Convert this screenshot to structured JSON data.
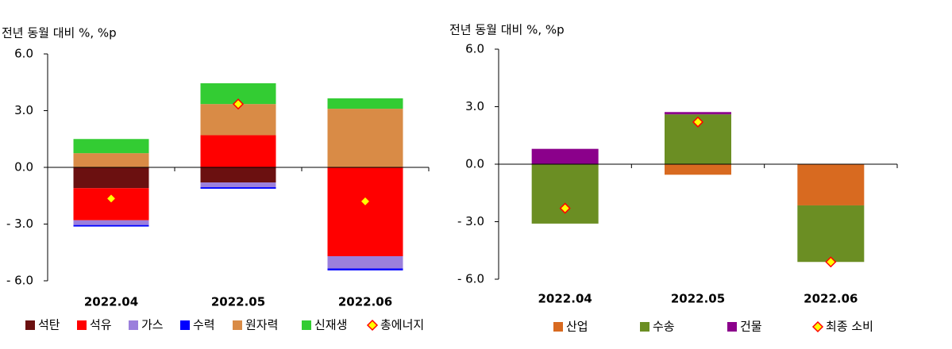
{
  "chart_data": [
    {
      "type": "bar",
      "stacked": true,
      "ylabel": "전년 동월 대비 %, %p",
      "categories": [
        "2022.04",
        "2022.05",
        "2022.06"
      ],
      "ylim": [
        -6,
        6
      ],
      "yticks": [
        {
          "value": 6,
          "label": "6.0"
        },
        {
          "value": 3,
          "label": "3.0"
        },
        {
          "value": 0,
          "label": "0.0"
        },
        {
          "value": -3,
          "label": "- 3.0"
        },
        {
          "value": -6,
          "label": "- 6.0"
        }
      ],
      "series": [
        {
          "name": "석탄",
          "color": "#6b1010",
          "values": [
            -1.1,
            -0.8,
            0
          ]
        },
        {
          "name": "석유",
          "color": "#ff0000",
          "values": [
            -1.7,
            1.7,
            -4.7
          ]
        },
        {
          "name": "가스",
          "color": "#9b7fdc",
          "values": [
            -0.25,
            -0.25,
            -0.65
          ]
        },
        {
          "name": "수력",
          "color": "#0000ff",
          "values": [
            -0.08,
            -0.08,
            -0.1
          ]
        },
        {
          "name": "원자력",
          "color": "#d98b46",
          "values": [
            0.75,
            1.65,
            3.1
          ]
        },
        {
          "name": "신재생",
          "color": "#33cc33",
          "values": [
            0.75,
            1.1,
            0.55
          ]
        }
      ],
      "total": {
        "name": "총에너지",
        "values": [
          -1.65,
          3.35,
          -1.8
        ]
      }
    },
    {
      "type": "bar",
      "stacked": true,
      "ylabel": "전년 동월 대비 %, %p",
      "categories": [
        "2022.04",
        "2022.05",
        "2022.06"
      ],
      "ylim": [
        -6,
        6
      ],
      "yticks": [
        {
          "value": 6,
          "label": "6.0"
        },
        {
          "value": 3,
          "label": "3.0"
        },
        {
          "value": 0,
          "label": "0.0"
        },
        {
          "value": -3,
          "label": "- 3.0"
        },
        {
          "value": -6,
          "label": "- 6.0"
        }
      ],
      "series": [
        {
          "name": "산업",
          "color": "#d86a20",
          "values": [
            0,
            -0.55,
            -2.15
          ]
        },
        {
          "name": "수송",
          "color": "#6b8e23",
          "values": [
            -3.1,
            2.6,
            -2.95
          ]
        },
        {
          "name": "건물",
          "color": "#8b008b",
          "values": [
            0.8,
            0.12,
            0
          ]
        }
      ],
      "total": {
        "name": "최종 소비",
        "values": [
          -2.3,
          2.2,
          -5.1
        ]
      }
    }
  ]
}
